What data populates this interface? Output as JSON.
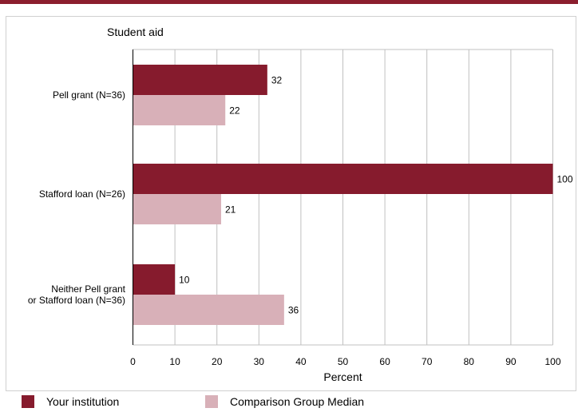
{
  "colors": {
    "top_rule": "#8b1e2e",
    "series_primary": "#861b2d",
    "series_comparison": "#d8b0b8",
    "grid": "#c0c0c0",
    "frame": "#d0d0d0"
  },
  "chart_data": {
    "type": "bar",
    "orientation": "horizontal",
    "title": "Student aid",
    "xlabel": "Percent",
    "xlim": [
      0,
      100
    ],
    "xticks": [
      0,
      10,
      20,
      30,
      40,
      50,
      60,
      70,
      80,
      90,
      100
    ],
    "grid": true,
    "legend_position": "bottom",
    "categories": [
      [
        "Pell grant  (N=36)"
      ],
      [
        "Stafford loan (N=26)"
      ],
      [
        "Neither Pell grant",
        "or Stafford loan (N=36)"
      ]
    ],
    "series": [
      {
        "name": "Your institution",
        "values": [
          32,
          100,
          10
        ]
      },
      {
        "name": "Comparison Group Median",
        "values": [
          22,
          21,
          36
        ]
      }
    ]
  }
}
